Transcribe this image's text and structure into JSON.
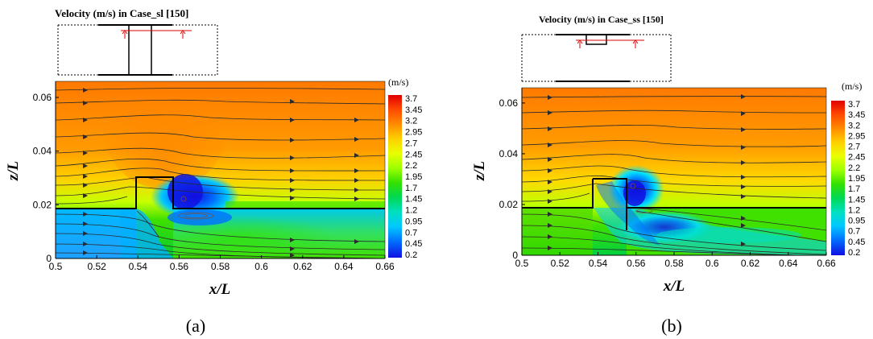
{
  "chart_data": [
    {
      "type": "heatmap",
      "panel_label": "(a)",
      "inset_title": "Velocity (m/s) in Case_sl [150]",
      "xlabel": "x/L",
      "ylabel": "z/L",
      "x_ticks": [
        "0.5",
        "0.52",
        "0.54",
        "0.56",
        "0.58",
        "0.6",
        "0.62",
        "0.64",
        "0.66"
      ],
      "y_ticks": [
        "0",
        "0.02",
        "0.04",
        "0.06"
      ],
      "xlim": [
        0.5,
        0.66
      ],
      "ylim": [
        0,
        0.066
      ],
      "colorbar": {
        "unit": "(m/s)",
        "labels": [
          "3.7",
          "3.45",
          "3.2",
          "2.95",
          "2.7",
          "2.45",
          "2.2",
          "1.95",
          "1.7",
          "1.45",
          "1.2",
          "0.95",
          "0.7",
          "0.45",
          "0.2"
        ],
        "range": [
          0.2,
          3.7
        ]
      },
      "geometry": {
        "bed_upstream_z": 0.0185,
        "bed_downstream_z": 0.0185,
        "block_x": [
          0.538,
          0.556
        ],
        "block_top_z": 0.0296
      }
    },
    {
      "type": "heatmap",
      "panel_label": "(b)",
      "inset_title": "Velocity (m/s) in Case_ss [150]",
      "xlabel": "x/L",
      "ylabel": "z/L",
      "x_ticks": [
        "0.5",
        "0.52",
        "0.54",
        "0.56",
        "0.58",
        "0.6",
        "0.62",
        "0.64",
        "0.66"
      ],
      "y_ticks": [
        "0",
        "0.02",
        "0.04",
        "0.06"
      ],
      "xlim": [
        0.5,
        0.66
      ],
      "ylim": [
        0,
        0.066
      ],
      "colorbar": {
        "unit": "(m/s)",
        "labels": [
          "3.7",
          "3.45",
          "3.2",
          "2.95",
          "2.7",
          "2.45",
          "2.2",
          "1.95",
          "1.7",
          "1.45",
          "1.2",
          "0.95",
          "0.7",
          "0.45",
          "0.2"
        ],
        "range": [
          0.2,
          3.7
        ]
      },
      "geometry": {
        "bed_upstream_z": 0.0185,
        "bed_downstream_z": 0.0185,
        "block_x": [
          0.537,
          0.556
        ],
        "block_top_z": 0.0296
      }
    }
  ],
  "colors": {
    "colormap": [
      "#e00000",
      "#ff4a00",
      "#ff8c00",
      "#ffd000",
      "#e8ff00",
      "#9cff00",
      "#33e000",
      "#00d855",
      "#00e0c0",
      "#00c8ff",
      "#0070ff",
      "#1010e0"
    ],
    "streamline": "#2a2a2a",
    "inset_marker": "#e00000"
  }
}
